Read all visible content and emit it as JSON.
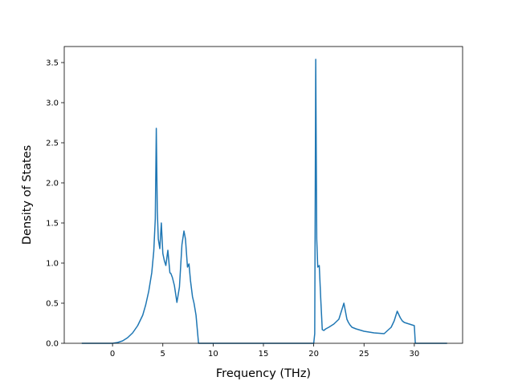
{
  "chart_data": {
    "type": "line",
    "title": "",
    "xlabel": "Frequency (THz)",
    "ylabel": "Density of States",
    "xlim": [
      -4.8,
      34.8
    ],
    "ylim": [
      0,
      3.7
    ],
    "xticks": [
      0,
      5,
      10,
      15,
      20,
      25,
      30
    ],
    "yticks": [
      0.0,
      0.5,
      1.0,
      1.5,
      2.0,
      2.5,
      3.0,
      3.5
    ],
    "xtick_labels": [
      "0",
      "5",
      "10",
      "15",
      "20",
      "25",
      "30"
    ],
    "ytick_labels": [
      "0.0",
      "0.5",
      "1.0",
      "1.5",
      "2.0",
      "2.5",
      "3.0",
      "3.5"
    ],
    "grid": false,
    "legend": "none",
    "series": [
      {
        "color": "#1f77b4",
        "x": [
          -3.0,
          -1.0,
          0.0,
          0.5,
          1.0,
          1.5,
          2.0,
          2.5,
          3.0,
          3.3,
          3.6,
          3.9,
          4.1,
          4.25,
          4.35,
          4.45,
          4.55,
          4.7,
          4.85,
          5.0,
          5.15,
          5.3,
          5.5,
          5.7,
          5.8,
          5.95,
          6.15,
          6.4,
          6.65,
          6.9,
          7.1,
          7.25,
          7.45,
          7.6,
          7.75,
          7.85,
          7.95,
          8.1,
          8.3,
          8.55,
          8.75,
          8.8,
          9.0,
          11.0,
          15.0,
          19.0,
          20.0,
          20.1,
          20.2,
          20.3,
          20.4,
          20.55,
          20.7,
          20.85,
          21.0,
          21.2,
          21.5,
          22.0,
          22.5,
          23.0,
          23.3,
          23.45,
          23.6,
          23.8,
          24.2,
          25.0,
          26.0,
          27.0,
          27.7,
          28.0,
          28.3,
          28.6,
          28.8,
          29.0,
          29.5,
          30.0,
          30.1,
          30.2,
          31.0,
          33.2
        ],
        "y": [
          0.0,
          0.0,
          0.0,
          0.01,
          0.03,
          0.07,
          0.13,
          0.22,
          0.35,
          0.48,
          0.65,
          0.88,
          1.15,
          1.55,
          2.68,
          1.65,
          1.3,
          1.18,
          1.5,
          1.12,
          1.03,
          0.97,
          1.16,
          0.88,
          0.87,
          0.82,
          0.72,
          0.51,
          0.7,
          1.23,
          1.4,
          1.3,
          0.95,
          0.99,
          0.78,
          0.68,
          0.58,
          0.5,
          0.35,
          0.0,
          0.0,
          0.0,
          0.0,
          0.0,
          0.0,
          0.0,
          0.0,
          0.12,
          3.54,
          1.3,
          0.95,
          0.97,
          0.55,
          0.17,
          0.16,
          0.18,
          0.2,
          0.24,
          0.3,
          0.5,
          0.3,
          0.26,
          0.23,
          0.2,
          0.18,
          0.15,
          0.13,
          0.12,
          0.2,
          0.28,
          0.4,
          0.32,
          0.28,
          0.26,
          0.24,
          0.22,
          0.0,
          0.0,
          0.0,
          0.0
        ]
      }
    ]
  }
}
